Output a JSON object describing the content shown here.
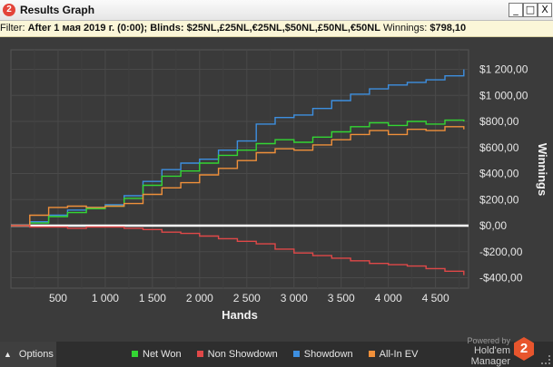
{
  "window": {
    "title": "Results Graph",
    "app_icon": "2",
    "buttons": {
      "minimize": "_",
      "maximize": "□",
      "close": "X"
    }
  },
  "filter": {
    "label": "Filter:",
    "date": "After 1 мая 2019 г. (0:00);",
    "blinds_label": "Blinds:",
    "blinds_value": "$25NL,£25NL,€25NL,$50NL,£50NL,€50NL",
    "winnings_label": "Winnings:",
    "winnings_value": "$798,10"
  },
  "footer": {
    "options_label": "Options",
    "powered_by": "Powered by",
    "brand": "Hold'em Manager",
    "brand_logo": "2",
    "legend": [
      {
        "name": "Net Won",
        "color": "#33d633"
      },
      {
        "name": "Non Showdown",
        "color": "#e04848"
      },
      {
        "name": "Showdown",
        "color": "#3d8fe0"
      },
      {
        "name": "All-In EV",
        "color": "#f0903a"
      }
    ]
  },
  "chart_data": {
    "type": "line",
    "xlabel": "Hands",
    "ylabel": "Winnings",
    "xlim": [
      0,
      4850
    ],
    "ylim": [
      -480,
      1350
    ],
    "x_ticks": [
      500,
      1000,
      1500,
      2000,
      2500,
      3000,
      3500,
      4000,
      4500
    ],
    "x_tick_labels": [
      "500",
      "1 000",
      "1 500",
      "2 000",
      "2 500",
      "3 000",
      "3 500",
      "4 000",
      "4 500"
    ],
    "y_ticks": [
      -400,
      -200,
      0,
      200,
      400,
      600,
      800,
      1000,
      1200
    ],
    "y_tick_labels": [
      "-$400,00",
      "-$200,00",
      "$0,00",
      "$200,00",
      "$400,00",
      "$600,00",
      "$800,00",
      "$1 000,00",
      "$1 200,00"
    ],
    "grid": true,
    "zero_line": true,
    "series": [
      {
        "name": "Showdown",
        "color": "#3d8fe0",
        "x": [
          0,
          200,
          400,
          600,
          800,
          1000,
          1200,
          1400,
          1600,
          1800,
          2000,
          2200,
          2400,
          2600,
          2800,
          3000,
          3200,
          3400,
          3600,
          3800,
          4000,
          4200,
          4400,
          4600,
          4800
        ],
        "y": [
          0,
          30,
          80,
          120,
          140,
          160,
          230,
          340,
          430,
          480,
          510,
          580,
          650,
          780,
          830,
          850,
          900,
          960,
          1010,
          1050,
          1080,
          1100,
          1120,
          1150,
          1200
        ]
      },
      {
        "name": "Net Won",
        "color": "#33d633",
        "x": [
          0,
          200,
          400,
          600,
          800,
          1000,
          1200,
          1400,
          1600,
          1800,
          2000,
          2200,
          2400,
          2600,
          2800,
          3000,
          3200,
          3400,
          3600,
          3800,
          4000,
          4200,
          4400,
          4600,
          4800
        ],
        "y": [
          0,
          20,
          70,
          100,
          130,
          150,
          210,
          310,
          380,
          420,
          480,
          540,
          580,
          630,
          660,
          640,
          680,
          720,
          760,
          790,
          770,
          800,
          780,
          810,
          800
        ]
      },
      {
        "name": "All-In EV",
        "color": "#f0903a",
        "x": [
          0,
          200,
          400,
          600,
          800,
          1000,
          1200,
          1400,
          1600,
          1800,
          2000,
          2200,
          2400,
          2600,
          2800,
          3000,
          3200,
          3400,
          3600,
          3800,
          4000,
          4200,
          4400,
          4600,
          4800
        ],
        "y": [
          0,
          80,
          140,
          150,
          140,
          150,
          170,
          240,
          290,
          330,
          390,
          440,
          500,
          560,
          590,
          580,
          620,
          660,
          700,
          730,
          700,
          740,
          730,
          760,
          740
        ]
      },
      {
        "name": "Non Showdown",
        "color": "#e04848",
        "x": [
          0,
          200,
          400,
          600,
          800,
          1000,
          1200,
          1400,
          1600,
          1800,
          2000,
          2200,
          2400,
          2600,
          2800,
          3000,
          3200,
          3400,
          3600,
          3800,
          4000,
          4200,
          4400,
          4600,
          4800
        ],
        "y": [
          0,
          -10,
          -10,
          -20,
          -10,
          -10,
          -20,
          -30,
          -50,
          -60,
          -80,
          -100,
          -120,
          -140,
          -180,
          -210,
          -230,
          -250,
          -270,
          -290,
          -300,
          -310,
          -330,
          -350,
          -380
        ]
      }
    ]
  }
}
